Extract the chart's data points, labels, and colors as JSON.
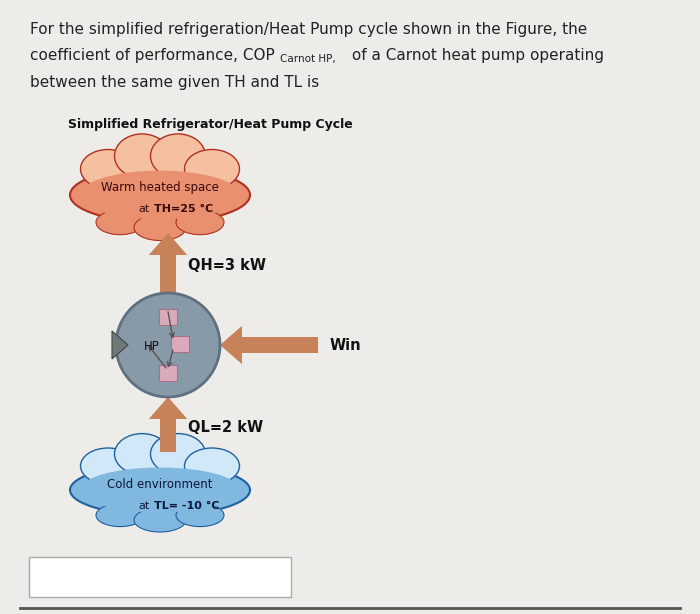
{
  "bg_color": "#eeece9",
  "diagram_title": "Simplified Refrigerator/Heat Pump Cycle",
  "warm_label1": "Warm heated space",
  "warm_label2": "at",
  "warm_label3": "TH=25 °C",
  "cold_label1": "Cold environment",
  "cold_label2": "at",
  "cold_label3": "TL= -10 °C",
  "QH_label": "QH=3 kW",
  "QL_label": "QL=2 kW",
  "Win_label": "Win",
  "HP_label": "HP",
  "warm_cloud_outer": "#b03020",
  "warm_cloud_inner": "#e89070",
  "warm_cloud_top": "#f5c0a0",
  "cold_cloud_outer": "#2060a0",
  "cold_cloud_inner": "#80b8e0",
  "cold_cloud_top": "#d0e8f8",
  "arrow_color": "#c8825a",
  "circle_color": "#8899a8",
  "circle_edge": "#607080",
  "box_color": "#daaabb",
  "box_edge": "#aa7088"
}
